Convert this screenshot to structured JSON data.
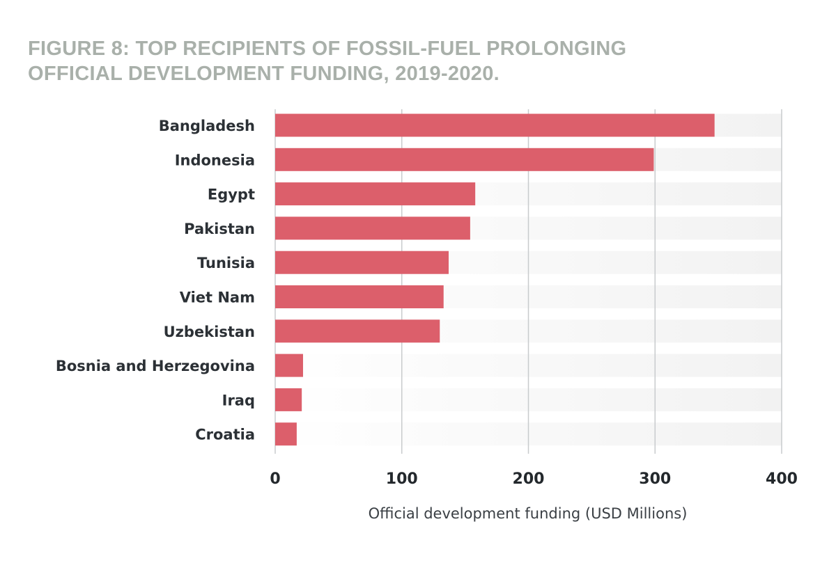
{
  "title_lines": [
    "FIGURE 8: TOP RECIPIENTS OF FOSSIL-FUEL PROLONGING",
    "OFFICIAL DEVELOPMENT FUNDING, 2019-2020."
  ],
  "chart_data": {
    "type": "bar",
    "orientation": "horizontal",
    "title": "FIGURE 8: TOP RECIPIENTS OF FOSSIL-FUEL PROLONGING OFFICIAL DEVELOPMENT FUNDING, 2019-2020.",
    "categories": [
      "Bangladesh",
      "Indonesia",
      "Egypt",
      "Pakistan",
      "Tunisia",
      "Viet Nam",
      "Uzbekistan",
      "Bosnia and Herzegovina",
      "Iraq",
      "Croatia"
    ],
    "values": [
      347,
      299,
      158,
      154,
      137,
      133,
      130,
      22,
      21,
      17
    ],
    "xlabel": "Official development funding (USD Millions)",
    "ylabel": "",
    "xlim": [
      0,
      400
    ],
    "xticks": [
      "0",
      "100",
      "200",
      "300",
      "400"
    ],
    "grid": "vertical",
    "legend": "none",
    "bar_color": "#dc5f6b",
    "track_color": "#f2f2f2",
    "grid_color": "#c8cbcd"
  }
}
